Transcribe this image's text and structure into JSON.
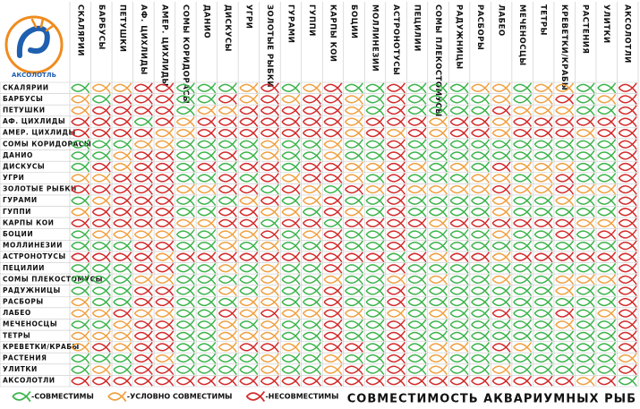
{
  "logo": {
    "text": "АКСОЛОТЛЬ"
  },
  "title": "СОВМЕСТИМОСТЬ АКВАРИУМНЫХ РЫБ",
  "legend": [
    {
      "label": "-СОВМЕСТИМЫ",
      "color": "#3cb44b"
    },
    {
      "label": "-УСЛОВНО СОВМЕСТИМЫ",
      "color": "#f0a040"
    },
    {
      "label": "-НЕСОВМЕСТИМЫ",
      "color": "#d42a2a"
    }
  ],
  "table": {
    "species": [
      "СКАЛЯРИИ",
      "БАРБУСЫ",
      "ПЕТУШКИ",
      "АФ. ЦИХЛИДЫ",
      "АМЕР. ЦИХЛИДЫ",
      "СОМЫ КОРИДОРАСЫ",
      "ДАНИО",
      "ДИСКУСЫ",
      "УГРИ",
      "ЗОЛОТЫЕ РЫБКИ",
      "ГУРАМИ",
      "ГУППИ",
      "КАРПЫ КОИ",
      "БОЦИИ",
      "МОЛЛИНЕЗИИ",
      "АСТРОНОТУСЫ",
      "ПЕЦИЛИИ",
      "СОМЫ ПЛЕКОСТОМУСЫ",
      "РАДУЖНИЦЫ",
      "РАСБОРЫ",
      "ЛАБЕО",
      "МЕЧЕНОСЦЫ",
      "ТЕТРЫ",
      "КРЕВЕТКИ/КРАБЫ",
      "РАСТЕНИЯ",
      "УЛИТКИ",
      "АКСОЛОТЛИ"
    ],
    "rows": [
      [
        0,
        1,
        1,
        2,
        2,
        0,
        0,
        0,
        1,
        2,
        0,
        1,
        2,
        0,
        0,
        2,
        0,
        0,
        0,
        1,
        1,
        0,
        1,
        1,
        0,
        0,
        2
      ],
      [
        1,
        0,
        2,
        2,
        2,
        0,
        0,
        2,
        1,
        2,
        1,
        2,
        2,
        1,
        0,
        2,
        0,
        0,
        0,
        0,
        1,
        0,
        1,
        2,
        0,
        1,
        2
      ],
      [
        1,
        2,
        2,
        2,
        2,
        0,
        1,
        1,
        2,
        2,
        2,
        2,
        2,
        1,
        0,
        2,
        0,
        0,
        0,
        0,
        2,
        1,
        1,
        1,
        0,
        0,
        2
      ],
      [
        2,
        2,
        2,
        0,
        2,
        1,
        2,
        2,
        2,
        2,
        2,
        2,
        2,
        1,
        2,
        2,
        2,
        1,
        2,
        2,
        1,
        2,
        2,
        2,
        2,
        2,
        2
      ],
      [
        2,
        2,
        2,
        2,
        1,
        1,
        2,
        2,
        2,
        2,
        2,
        2,
        2,
        1,
        2,
        1,
        2,
        1,
        2,
        2,
        1,
        2,
        2,
        2,
        1,
        2,
        2
      ],
      [
        0,
        0,
        0,
        1,
        1,
        0,
        0,
        0,
        0,
        1,
        0,
        0,
        1,
        0,
        0,
        2,
        0,
        0,
        0,
        0,
        0,
        0,
        0,
        0,
        0,
        0,
        2
      ],
      [
        0,
        0,
        1,
        2,
        2,
        0,
        0,
        2,
        0,
        1,
        0,
        0,
        1,
        0,
        0,
        2,
        0,
        0,
        0,
        0,
        0,
        0,
        0,
        0,
        0,
        0,
        2
      ],
      [
        0,
        2,
        1,
        2,
        2,
        0,
        2,
        0,
        2,
        2,
        0,
        2,
        2,
        1,
        1,
        2,
        1,
        0,
        1,
        0,
        2,
        1,
        1,
        1,
        0,
        0,
        2
      ],
      [
        1,
        1,
        2,
        2,
        2,
        0,
        0,
        2,
        0,
        2,
        1,
        2,
        2,
        1,
        0,
        2,
        0,
        0,
        0,
        1,
        1,
        0,
        1,
        2,
        0,
        0,
        2
      ],
      [
        2,
        2,
        2,
        2,
        2,
        1,
        1,
        2,
        2,
        0,
        2,
        1,
        0,
        2,
        1,
        2,
        1,
        1,
        1,
        1,
        2,
        1,
        1,
        2,
        1,
        1,
        2
      ],
      [
        0,
        1,
        2,
        2,
        2,
        0,
        0,
        0,
        1,
        2,
        0,
        1,
        2,
        0,
        0,
        2,
        0,
        0,
        0,
        0,
        1,
        0,
        0,
        1,
        0,
        0,
        2
      ],
      [
        1,
        2,
        2,
        2,
        2,
        0,
        0,
        2,
        2,
        1,
        1,
        0,
        2,
        1,
        0,
        2,
        0,
        0,
        0,
        0,
        1,
        0,
        0,
        0,
        0,
        0,
        2
      ],
      [
        2,
        2,
        2,
        2,
        2,
        1,
        1,
        2,
        2,
        0,
        2,
        2,
        0,
        2,
        2,
        2,
        2,
        1,
        2,
        2,
        2,
        2,
        2,
        2,
        1,
        1,
        2
      ],
      [
        0,
        1,
        1,
        1,
        1,
        0,
        0,
        1,
        1,
        2,
        0,
        1,
        2,
        0,
        0,
        2,
        0,
        0,
        0,
        0,
        1,
        0,
        0,
        2,
        0,
        2,
        2
      ],
      [
        0,
        0,
        0,
        2,
        2,
        0,
        0,
        1,
        0,
        1,
        0,
        0,
        2,
        0,
        0,
        2,
        0,
        0,
        0,
        0,
        0,
        0,
        0,
        0,
        0,
        0,
        2
      ],
      [
        2,
        2,
        2,
        2,
        1,
        2,
        2,
        2,
        2,
        2,
        2,
        2,
        2,
        2,
        2,
        0,
        2,
        1,
        2,
        2,
        1,
        2,
        2,
        2,
        2,
        2,
        2
      ],
      [
        0,
        0,
        0,
        2,
        2,
        0,
        0,
        1,
        0,
        1,
        0,
        0,
        2,
        0,
        0,
        2,
        0,
        0,
        0,
        0,
        0,
        0,
        0,
        0,
        0,
        0,
        2
      ],
      [
        0,
        0,
        0,
        1,
        1,
        0,
        0,
        0,
        0,
        1,
        0,
        0,
        1,
        0,
        0,
        1,
        0,
        1,
        0,
        0,
        1,
        0,
        0,
        1,
        1,
        1,
        2
      ],
      [
        0,
        0,
        0,
        2,
        2,
        0,
        0,
        1,
        0,
        1,
        0,
        0,
        2,
        0,
        0,
        2,
        0,
        0,
        0,
        0,
        0,
        0,
        0,
        1,
        0,
        0,
        2
      ],
      [
        1,
        0,
        0,
        2,
        2,
        0,
        0,
        0,
        1,
        1,
        0,
        0,
        2,
        0,
        0,
        2,
        0,
        0,
        0,
        0,
        0,
        0,
        0,
        0,
        0,
        0,
        2
      ],
      [
        1,
        1,
        2,
        1,
        1,
        0,
        0,
        2,
        1,
        2,
        1,
        1,
        2,
        1,
        0,
        1,
        0,
        1,
        0,
        0,
        2,
        0,
        0,
        2,
        0,
        1,
        2
      ],
      [
        0,
        0,
        1,
        2,
        2,
        0,
        0,
        1,
        0,
        1,
        0,
        0,
        2,
        0,
        0,
        2,
        0,
        0,
        0,
        0,
        0,
        0,
        0,
        1,
        0,
        0,
        2
      ],
      [
        1,
        1,
        1,
        2,
        2,
        0,
        0,
        1,
        1,
        1,
        0,
        0,
        2,
        0,
        0,
        2,
        0,
        0,
        0,
        0,
        0,
        0,
        0,
        0,
        0,
        0,
        2
      ],
      [
        1,
        2,
        1,
        2,
        2,
        0,
        0,
        1,
        2,
        2,
        1,
        0,
        2,
        2,
        0,
        2,
        0,
        1,
        1,
        0,
        2,
        1,
        0,
        0,
        0,
        0,
        2
      ],
      [
        0,
        0,
        0,
        2,
        1,
        0,
        0,
        0,
        0,
        1,
        0,
        0,
        1,
        0,
        0,
        2,
        0,
        1,
        0,
        0,
        0,
        0,
        0,
        0,
        0,
        0,
        1
      ],
      [
        0,
        1,
        0,
        2,
        2,
        0,
        0,
        0,
        0,
        1,
        0,
        0,
        1,
        2,
        0,
        2,
        0,
        1,
        0,
        0,
        1,
        0,
        0,
        0,
        0,
        0,
        2
      ],
      [
        2,
        2,
        2,
        2,
        2,
        2,
        2,
        2,
        2,
        2,
        2,
        2,
        2,
        2,
        2,
        2,
        2,
        2,
        2,
        2,
        2,
        2,
        2,
        2,
        1,
        2,
        0
      ]
    ]
  }
}
